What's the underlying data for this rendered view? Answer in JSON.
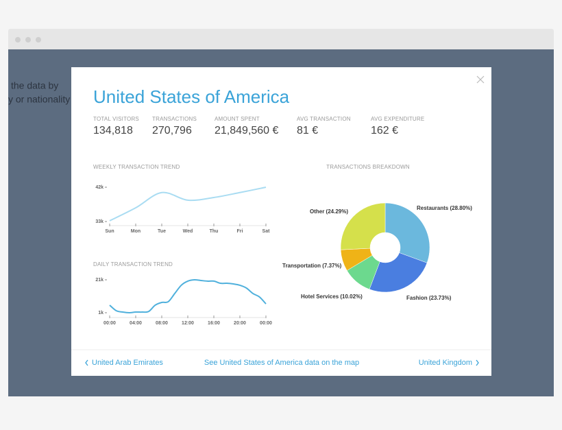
{
  "background_text": [
    "the data by",
    "y or nationality"
  ],
  "modal": {
    "title": "United States of America",
    "stats": [
      {
        "label": "TOTAL VISITORS",
        "value": "134,818"
      },
      {
        "label": "TRANSACTIONS",
        "value": "270,796"
      },
      {
        "label": "AMOUNT SPENT",
        "value": "21,849,560 €"
      },
      {
        "label": "AVG TRANSACTION",
        "value": "81 €"
      },
      {
        "label": "AVG EXPENDITURE",
        "value": "162 €"
      }
    ],
    "footer": {
      "prev": "United Arab Emirates",
      "center": "See United States of America data on the map",
      "next": "United Kingdom"
    }
  },
  "chart_data": [
    {
      "type": "line",
      "title": "WEEKLY TRANSACTION TREND",
      "categories": [
        "Sun",
        "Mon",
        "Tue",
        "Wed",
        "Thu",
        "Fri",
        "Sat"
      ],
      "values": [
        33200,
        36600,
        40600,
        38600,
        39300,
        40600,
        42000
      ],
      "color": "#a9dcf2",
      "ylim": [
        33000,
        42000
      ],
      "yticks": [
        {
          "value": 33000,
          "label": "33k"
        },
        {
          "value": 42000,
          "label": "42k"
        }
      ]
    },
    {
      "type": "line",
      "title": "DAILY TRANSACTION TREND",
      "x": [
        0,
        1,
        2,
        3,
        4,
        5,
        6,
        7,
        8,
        9,
        10,
        11,
        12,
        13,
        14,
        15,
        16,
        17,
        18,
        19,
        20,
        21,
        22,
        23,
        24
      ],
      "values": [
        5600,
        2250,
        1400,
        1000,
        1400,
        1400,
        1800,
        5600,
        7250,
        7700,
        12700,
        17700,
        20200,
        21000,
        20600,
        20200,
        20200,
        18900,
        18900,
        18500,
        17700,
        16000,
        12700,
        10600,
        6400
      ],
      "color": "#4fb0dc",
      "xlim": [
        0,
        24
      ],
      "xticks": [
        {
          "value": 0,
          "label": "00:00"
        },
        {
          "value": 4,
          "label": "04:00"
        },
        {
          "value": 8,
          "label": "08:00"
        },
        {
          "value": 12,
          "label": "12:00"
        },
        {
          "value": 16,
          "label": "16:00"
        },
        {
          "value": 20,
          "label": "20:00"
        },
        {
          "value": 24,
          "label": "00:00"
        }
      ],
      "ylim": [
        1000,
        21000
      ],
      "yticks": [
        {
          "value": 1000,
          "label": "1k"
        },
        {
          "value": 21000,
          "label": "21k"
        }
      ]
    },
    {
      "type": "pie",
      "title": "TRANSACTIONS BREAKDOWN",
      "values": [
        28.8,
        23.73,
        10.02,
        7.37,
        24.29
      ],
      "value_labels": [
        "Restaurants (28.80%)",
        "Fashion (23.73%)",
        "Hotel Services (10.02%)",
        "Transportation (7.37%)",
        "Other (24.29%)"
      ],
      "colors": [
        "#6bb8dd",
        "#4a7ee0",
        "#6cd98e",
        "#efb317",
        "#d5e04b"
      ]
    }
  ]
}
